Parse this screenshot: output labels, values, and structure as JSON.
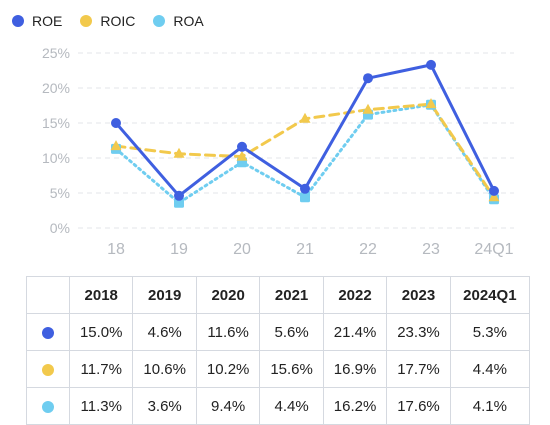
{
  "chart_data": {
    "type": "line",
    "categories": [
      "18",
      "19",
      "20",
      "21",
      "22",
      "23",
      "24Q1"
    ],
    "series": [
      {
        "name": "ROE",
        "values": [
          15.0,
          4.6,
          11.6,
          5.6,
          21.4,
          23.3,
          5.3
        ],
        "color": "#3f5fe0",
        "style": "solid",
        "marker": "circle"
      },
      {
        "name": "ROIC",
        "values": [
          11.7,
          10.6,
          10.2,
          15.6,
          16.9,
          17.7,
          4.4
        ],
        "color": "#f2c94c",
        "style": "dashed",
        "marker": "triangle"
      },
      {
        "name": "ROA",
        "values": [
          11.3,
          3.6,
          9.4,
          4.4,
          16.2,
          17.6,
          4.1
        ],
        "color": "#6fcdf0",
        "style": "dotted",
        "marker": "square"
      }
    ],
    "yticks": [
      "0%",
      "5%",
      "10%",
      "15%",
      "20%",
      "25%"
    ],
    "ylim": [
      0,
      25
    ],
    "grid": "horizontal-dashed",
    "legend_position": "top-left"
  },
  "table": {
    "headers": [
      "2018",
      "2019",
      "2020",
      "2021",
      "2022",
      "2023",
      "2024Q1"
    ],
    "rows": [
      [
        "15.0%",
        "4.6%",
        "11.6%",
        "5.6%",
        "21.4%",
        "23.3%",
        "5.3%"
      ],
      [
        "11.7%",
        "10.6%",
        "10.2%",
        "15.6%",
        "16.9%",
        "17.7%",
        "4.4%"
      ],
      [
        "11.3%",
        "3.6%",
        "9.4%",
        "4.4%",
        "16.2%",
        "17.6%",
        "4.1%"
      ]
    ]
  }
}
